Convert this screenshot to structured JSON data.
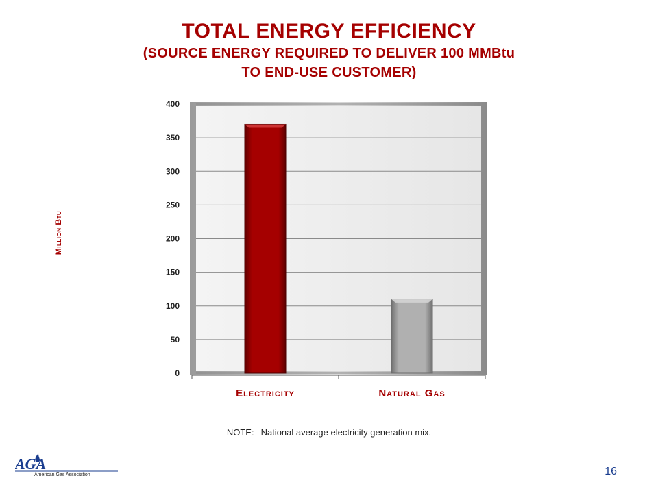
{
  "title": "TOTAL ENERGY EFFICIENCY",
  "subtitle_line1": "(SOURCE ENERGY REQUIRED TO DELIVER 100 MMBtu",
  "subtitle_line2": "TO END-USE CUSTOMER)",
  "note_label": "NOTE:",
  "note_text": "National average electricity generation mix.",
  "page_number": "16",
  "logo": {
    "letters": "AGA",
    "name": "American Gas Association",
    "color": "#1a3d8f"
  },
  "chart_data": {
    "type": "bar",
    "categories": [
      "Electricity",
      "Natural Gas"
    ],
    "series": [
      {
        "values": [
          370,
          110
        ]
      }
    ],
    "bar_colors": [
      "#a50000",
      "#b0b0b0"
    ],
    "title": "",
    "xlabel": "",
    "ylabel": "Million Btu",
    "ylim": [
      0,
      400
    ],
    "yticks": [
      0,
      50,
      100,
      150,
      200,
      250,
      300,
      350,
      400
    ],
    "grid": true,
    "legend": "none"
  }
}
